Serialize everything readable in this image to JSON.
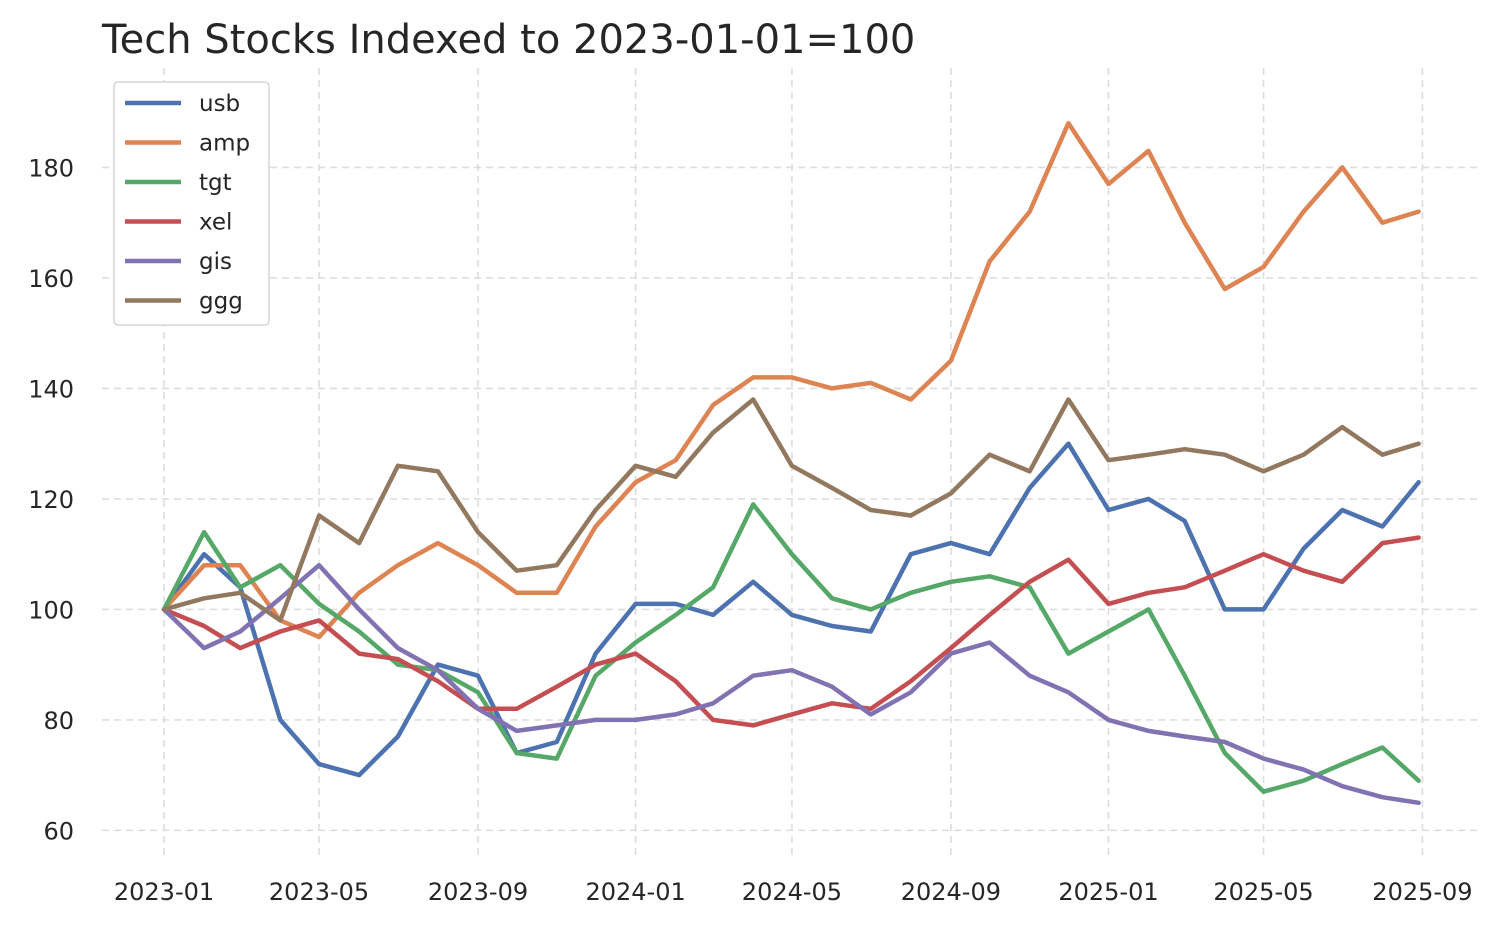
{
  "chart_data": {
    "type": "line",
    "title": "Tech Stocks Indexed to 2023-01-01=100",
    "xlabel": "",
    "ylabel": "",
    "x_ticks": [
      "2023-01",
      "2023-05",
      "2023-09",
      "2024-01",
      "2024-05",
      "2024-09",
      "2025-01",
      "2025-05",
      "2025-09"
    ],
    "y_ticks": [
      60,
      80,
      100,
      120,
      140,
      160,
      180
    ],
    "xlim": [
      "2022-11-14",
      "2025-10-14"
    ],
    "ylim": [
      55,
      198
    ],
    "grid": true,
    "legend_position": "top-left",
    "x": [
      "2023-01-01",
      "2023-02-01",
      "2023-03-01",
      "2023-04-01",
      "2023-05-01",
      "2023-06-01",
      "2023-07-01",
      "2023-08-01",
      "2023-09-01",
      "2023-10-01",
      "2023-11-01",
      "2023-12-01",
      "2024-01-01",
      "2024-02-01",
      "2024-03-01",
      "2024-04-01",
      "2024-05-01",
      "2024-06-01",
      "2024-07-01",
      "2024-08-01",
      "2024-09-01",
      "2024-10-01",
      "2024-11-01",
      "2024-12-01",
      "2025-01-01",
      "2025-02-01",
      "2025-03-01",
      "2025-04-01",
      "2025-05-01",
      "2025-06-01",
      "2025-07-01",
      "2025-08-01",
      "2025-08-29"
    ],
    "series": [
      {
        "name": "usb",
        "color": "#4c72b0",
        "values": [
          100,
          110,
          104,
          80,
          72,
          70,
          77,
          90,
          88,
          74,
          76,
          92,
          101,
          101,
          99,
          105,
          99,
          97,
          96,
          110,
          112,
          110,
          122,
          130,
          118,
          120,
          116,
          100,
          100,
          111,
          118,
          115,
          123
        ]
      },
      {
        "name": "amp",
        "color": "#dd8452",
        "values": [
          100,
          108,
          108,
          98,
          95,
          103,
          108,
          112,
          108,
          103,
          103,
          115,
          123,
          127,
          137,
          142,
          142,
          140,
          141,
          138,
          145,
          163,
          172,
          188,
          177,
          183,
          170,
          158,
          162,
          172,
          180,
          170,
          172
        ]
      },
      {
        "name": "tgt",
        "color": "#55a868",
        "values": [
          100,
          114,
          104,
          108,
          101,
          96,
          90,
          89,
          85,
          74,
          73,
          88,
          94,
          99,
          104,
          119,
          110,
          102,
          100,
          103,
          105,
          106,
          104,
          92,
          96,
          100,
          88,
          74,
          67,
          69,
          72,
          75,
          69
        ]
      },
      {
        "name": "xel",
        "color": "#c44e52",
        "values": [
          100,
          97,
          93,
          96,
          98,
          92,
          91,
          87,
          82,
          82,
          86,
          90,
          92,
          87,
          80,
          79,
          81,
          83,
          82,
          87,
          93,
          99,
          105,
          109,
          101,
          103,
          104,
          107,
          110,
          107,
          105,
          112,
          113
        ]
      },
      {
        "name": "gis",
        "color": "#8172b2",
        "values": [
          100,
          93,
          96,
          102,
          108,
          100,
          93,
          89,
          82,
          78,
          79,
          80,
          80,
          81,
          83,
          88,
          89,
          86,
          81,
          85,
          92,
          94,
          88,
          85,
          80,
          78,
          77,
          76,
          73,
          71,
          68,
          66,
          65
        ]
      },
      {
        "name": "ggg",
        "color": "#937860",
        "values": [
          100,
          102,
          103,
          98,
          117,
          112,
          126,
          125,
          114,
          107,
          108,
          118,
          126,
          124,
          132,
          138,
          126,
          122,
          118,
          117,
          121,
          128,
          125,
          138,
          127,
          128,
          129,
          128,
          125,
          128,
          133,
          128,
          130
        ]
      }
    ]
  }
}
